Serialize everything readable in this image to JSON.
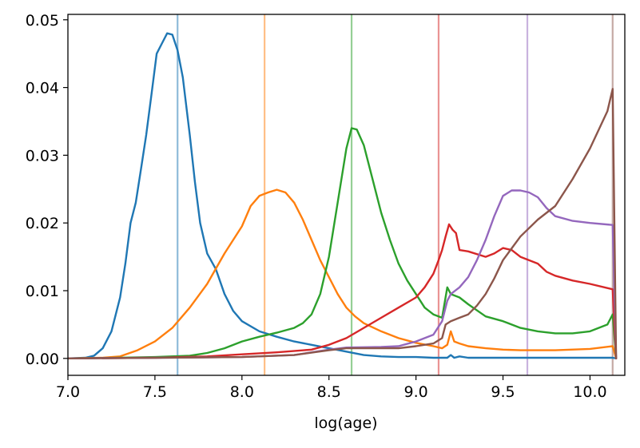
{
  "chart_data": {
    "type": "line",
    "title": "",
    "xlabel": "log(age)",
    "ylabel": "",
    "xlim": [
      7.0,
      10.2
    ],
    "ylim": [
      -0.0025,
      0.0508
    ],
    "xticks": [
      7.0,
      7.5,
      8.0,
      8.5,
      9.0,
      9.5,
      10.0
    ],
    "xtick_labels": [
      "7.0",
      "7.5",
      "8.0",
      "8.5",
      "9.0",
      "9.5",
      "10.0"
    ],
    "yticks": [
      0.0,
      0.01,
      0.02,
      0.03,
      0.04,
      0.05
    ],
    "ytick_labels": [
      "0.00",
      "0.01",
      "0.02",
      "0.03",
      "0.04",
      "0.05"
    ],
    "grid": false,
    "legend": "none",
    "vlines": [
      {
        "x": 7.63,
        "color": "#1f77b4"
      },
      {
        "x": 8.13,
        "color": "#ff7f0e"
      },
      {
        "x": 8.63,
        "color": "#2ca02c"
      },
      {
        "x": 9.13,
        "color": "#d62728"
      },
      {
        "x": 9.64,
        "color": "#9467bd"
      },
      {
        "x": 10.13,
        "color": "#8c564b"
      }
    ],
    "series": [
      {
        "color": "#1f77b4",
        "points": [
          [
            7.0,
            0.0
          ],
          [
            7.1,
            0.0001
          ],
          [
            7.15,
            0.0004
          ],
          [
            7.2,
            0.0015
          ],
          [
            7.25,
            0.004
          ],
          [
            7.3,
            0.009
          ],
          [
            7.33,
            0.014
          ],
          [
            7.36,
            0.02
          ],
          [
            7.39,
            0.023
          ],
          [
            7.42,
            0.028
          ],
          [
            7.45,
            0.033
          ],
          [
            7.48,
            0.039
          ],
          [
            7.51,
            0.045
          ],
          [
            7.54,
            0.0465
          ],
          [
            7.57,
            0.048
          ],
          [
            7.6,
            0.0478
          ],
          [
            7.63,
            0.0455
          ],
          [
            7.66,
            0.0415
          ],
          [
            7.7,
            0.033
          ],
          [
            7.73,
            0.026
          ],
          [
            7.76,
            0.02
          ],
          [
            7.8,
            0.0155
          ],
          [
            7.85,
            0.0132
          ],
          [
            7.9,
            0.0095
          ],
          [
            7.95,
            0.007
          ],
          [
            8.0,
            0.0055
          ],
          [
            8.1,
            0.004
          ],
          [
            8.2,
            0.0032
          ],
          [
            8.3,
            0.0025
          ],
          [
            8.4,
            0.002
          ],
          [
            8.5,
            0.0015
          ],
          [
            8.6,
            0.001
          ],
          [
            8.7,
            0.0005
          ],
          [
            8.8,
            0.0003
          ],
          [
            8.9,
            0.0002
          ],
          [
            9.0,
            0.0002
          ],
          [
            9.1,
            0.0001
          ],
          [
            9.18,
            0.0001
          ],
          [
            9.2,
            0.0005
          ],
          [
            9.22,
            0.0001
          ],
          [
            9.25,
            0.0003
          ],
          [
            9.3,
            0.0001
          ],
          [
            9.5,
            0.0001
          ],
          [
            10.13,
            0.0001
          ],
          [
            10.15,
            0.0
          ]
        ]
      },
      {
        "color": "#ff7f0e",
        "points": [
          [
            7.0,
            0.0
          ],
          [
            7.2,
            0.0001
          ],
          [
            7.3,
            0.0003
          ],
          [
            7.4,
            0.0012
          ],
          [
            7.5,
            0.0025
          ],
          [
            7.6,
            0.0045
          ],
          [
            7.7,
            0.0075
          ],
          [
            7.8,
            0.011
          ],
          [
            7.9,
            0.0155
          ],
          [
            8.0,
            0.0195
          ],
          [
            8.05,
            0.0225
          ],
          [
            8.1,
            0.024
          ],
          [
            8.15,
            0.0245
          ],
          [
            8.2,
            0.0249
          ],
          [
            8.25,
            0.0245
          ],
          [
            8.3,
            0.023
          ],
          [
            8.35,
            0.0205
          ],
          [
            8.4,
            0.0175
          ],
          [
            8.45,
            0.0145
          ],
          [
            8.5,
            0.012
          ],
          [
            8.55,
            0.0095
          ],
          [
            8.6,
            0.0075
          ],
          [
            8.65,
            0.0062
          ],
          [
            8.7,
            0.0052
          ],
          [
            8.8,
            0.004
          ],
          [
            8.9,
            0.003
          ],
          [
            9.0,
            0.0023
          ],
          [
            9.1,
            0.0018
          ],
          [
            9.15,
            0.0015
          ],
          [
            9.18,
            0.002
          ],
          [
            9.2,
            0.004
          ],
          [
            9.22,
            0.0025
          ],
          [
            9.25,
            0.0022
          ],
          [
            9.3,
            0.0018
          ],
          [
            9.4,
            0.0015
          ],
          [
            9.5,
            0.0013
          ],
          [
            9.6,
            0.0012
          ],
          [
            9.8,
            0.0012
          ],
          [
            10.0,
            0.0014
          ],
          [
            10.13,
            0.0018
          ],
          [
            10.15,
            0.0
          ]
        ]
      },
      {
        "color": "#2ca02c",
        "points": [
          [
            7.0,
            0.0
          ],
          [
            7.3,
            0.0001
          ],
          [
            7.5,
            0.0002
          ],
          [
            7.7,
            0.0004
          ],
          [
            7.8,
            0.0008
          ],
          [
            7.9,
            0.0015
          ],
          [
            8.0,
            0.0025
          ],
          [
            8.1,
            0.0032
          ],
          [
            8.2,
            0.0038
          ],
          [
            8.3,
            0.0045
          ],
          [
            8.35,
            0.0052
          ],
          [
            8.4,
            0.0065
          ],
          [
            8.45,
            0.0095
          ],
          [
            8.5,
            0.015
          ],
          [
            8.55,
            0.023
          ],
          [
            8.6,
            0.031
          ],
          [
            8.63,
            0.034
          ],
          [
            8.66,
            0.0338
          ],
          [
            8.7,
            0.0315
          ],
          [
            8.75,
            0.0265
          ],
          [
            8.8,
            0.0215
          ],
          [
            8.85,
            0.0175
          ],
          [
            8.9,
            0.014
          ],
          [
            8.95,
            0.0115
          ],
          [
            9.0,
            0.0095
          ],
          [
            9.05,
            0.0075
          ],
          [
            9.1,
            0.0065
          ],
          [
            9.15,
            0.006
          ],
          [
            9.18,
            0.0105
          ],
          [
            9.2,
            0.0095
          ],
          [
            9.25,
            0.009
          ],
          [
            9.3,
            0.008
          ],
          [
            9.4,
            0.0062
          ],
          [
            9.5,
            0.0055
          ],
          [
            9.6,
            0.0045
          ],
          [
            9.7,
            0.004
          ],
          [
            9.8,
            0.0037
          ],
          [
            9.9,
            0.0037
          ],
          [
            10.0,
            0.004
          ],
          [
            10.1,
            0.005
          ],
          [
            10.13,
            0.0065
          ],
          [
            10.15,
            0.0
          ]
        ]
      },
      {
        "color": "#d62728",
        "points": [
          [
            7.0,
            0.0
          ],
          [
            7.5,
            0.0001
          ],
          [
            7.8,
            0.0003
          ],
          [
            8.0,
            0.0006
          ],
          [
            8.2,
            0.0009
          ],
          [
            8.4,
            0.0013
          ],
          [
            8.5,
            0.002
          ],
          [
            8.6,
            0.003
          ],
          [
            8.7,
            0.0045
          ],
          [
            8.8,
            0.006
          ],
          [
            8.9,
            0.0075
          ],
          [
            9.0,
            0.009
          ],
          [
            9.05,
            0.0105
          ],
          [
            9.1,
            0.0125
          ],
          [
            9.13,
            0.0145
          ],
          [
            9.15,
            0.016
          ],
          [
            9.17,
            0.018
          ],
          [
            9.19,
            0.0198
          ],
          [
            9.21,
            0.019
          ],
          [
            9.23,
            0.0185
          ],
          [
            9.25,
            0.016
          ],
          [
            9.3,
            0.0158
          ],
          [
            9.4,
            0.015
          ],
          [
            9.45,
            0.0155
          ],
          [
            9.5,
            0.0163
          ],
          [
            9.55,
            0.016
          ],
          [
            9.6,
            0.015
          ],
          [
            9.7,
            0.014
          ],
          [
            9.75,
            0.0128
          ],
          [
            9.8,
            0.0122
          ],
          [
            9.9,
            0.0115
          ],
          [
            10.0,
            0.011
          ],
          [
            10.13,
            0.0102
          ],
          [
            10.15,
            0.0
          ]
        ]
      },
      {
        "color": "#9467bd",
        "points": [
          [
            7.0,
            0.0
          ],
          [
            7.5,
            0.0001
          ],
          [
            8.0,
            0.0002
          ],
          [
            8.3,
            0.0005
          ],
          [
            8.5,
            0.0013
          ],
          [
            8.6,
            0.0016
          ],
          [
            8.8,
            0.0017
          ],
          [
            8.9,
            0.0018
          ],
          [
            9.0,
            0.0025
          ],
          [
            9.1,
            0.0035
          ],
          [
            9.15,
            0.0055
          ],
          [
            9.18,
            0.0085
          ],
          [
            9.2,
            0.0095
          ],
          [
            9.25,
            0.0105
          ],
          [
            9.3,
            0.012
          ],
          [
            9.35,
            0.0145
          ],
          [
            9.4,
            0.0175
          ],
          [
            9.45,
            0.021
          ],
          [
            9.5,
            0.024
          ],
          [
            9.55,
            0.0248
          ],
          [
            9.6,
            0.0248
          ],
          [
            9.65,
            0.0245
          ],
          [
            9.7,
            0.0238
          ],
          [
            9.75,
            0.0222
          ],
          [
            9.8,
            0.021
          ],
          [
            9.9,
            0.0203
          ],
          [
            10.0,
            0.02
          ],
          [
            10.13,
            0.0197
          ],
          [
            10.15,
            0.0
          ]
        ]
      },
      {
        "color": "#8c564b",
        "points": [
          [
            7.0,
            0.0
          ],
          [
            7.5,
            0.0001
          ],
          [
            8.0,
            0.0002
          ],
          [
            8.3,
            0.0005
          ],
          [
            8.5,
            0.0012
          ],
          [
            8.6,
            0.0015
          ],
          [
            8.8,
            0.0015
          ],
          [
            8.9,
            0.0015
          ],
          [
            9.0,
            0.0018
          ],
          [
            9.1,
            0.0022
          ],
          [
            9.15,
            0.003
          ],
          [
            9.17,
            0.005
          ],
          [
            9.2,
            0.0055
          ],
          [
            9.25,
            0.006
          ],
          [
            9.3,
            0.0065
          ],
          [
            9.35,
            0.0078
          ],
          [
            9.4,
            0.0095
          ],
          [
            9.45,
            0.0118
          ],
          [
            9.5,
            0.0145
          ],
          [
            9.6,
            0.018
          ],
          [
            9.7,
            0.0205
          ],
          [
            9.8,
            0.0225
          ],
          [
            9.9,
            0.0265
          ],
          [
            10.0,
            0.031
          ],
          [
            10.1,
            0.0365
          ],
          [
            10.13,
            0.0398
          ],
          [
            10.15,
            0.0
          ]
        ]
      }
    ]
  }
}
